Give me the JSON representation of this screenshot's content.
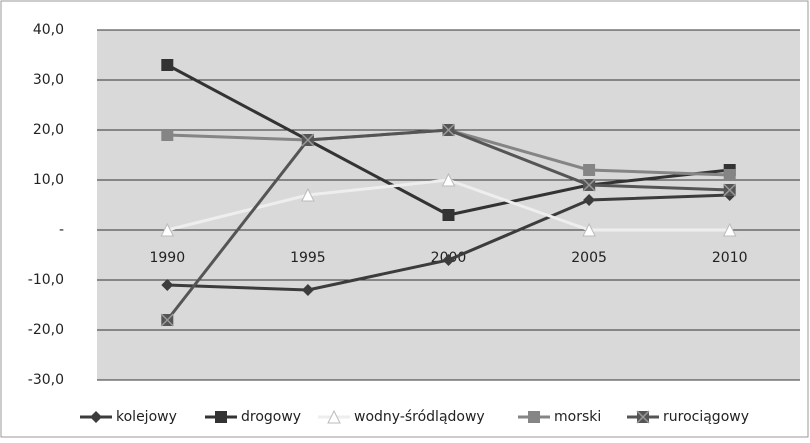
{
  "chart_data": {
    "type": "line",
    "categories": [
      "1990",
      "1995",
      "2000",
      "2005",
      "2010"
    ],
    "series": [
      {
        "name": "kolejowy",
        "color": "#3c3c3c",
        "marker": "diamond",
        "values": [
          -11,
          -12,
          -6,
          6,
          7
        ]
      },
      {
        "name": "drogowy",
        "color": "#333333",
        "marker": "square",
        "values": [
          33,
          18,
          3,
          9,
          12
        ]
      },
      {
        "name": "wodny-śródlądowy",
        "color": "#eeeeee",
        "marker": "triangle",
        "values": [
          0,
          7,
          10,
          0,
          0
        ]
      },
      {
        "name": "morski",
        "color": "#858585",
        "marker": "square",
        "values": [
          19,
          18,
          20,
          12,
          11
        ]
      },
      {
        "name": "rurociągowy",
        "color": "#555555",
        "marker": "xsquare",
        "values": [
          -18,
          18,
          20,
          9,
          8
        ]
      }
    ],
    "ylim": [
      -30,
      40
    ],
    "yticks": [
      {
        "value": -30,
        "label": "-30,0"
      },
      {
        "value": -20,
        "label": "-20,0"
      },
      {
        "value": -10,
        "label": "-10,0"
      },
      {
        "value": 0,
        "label": "-"
      },
      {
        "value": 10,
        "label": "10,0"
      },
      {
        "value": 20,
        "label": "20,0"
      },
      {
        "value": 30,
        "label": "30,0"
      },
      {
        "value": 40,
        "label": "40,0"
      }
    ],
    "grid": true
  }
}
